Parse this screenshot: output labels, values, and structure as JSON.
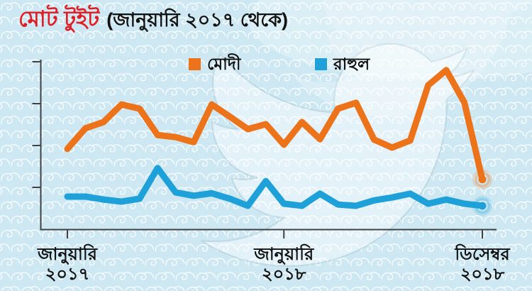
{
  "title": {
    "main": "মোট টুইট",
    "sub": "(জানুয়ারি ২০১৭ থেকে)"
  },
  "legend": {
    "items": [
      {
        "id": "modi",
        "label": "মোদী",
        "color": "#ec7319"
      },
      {
        "id": "rahul",
        "label": "রাহুল",
        "color": "#1ea0d9"
      }
    ]
  },
  "colors": {
    "background": "#cde8f2",
    "wave_pattern": "#ffffff",
    "axis": "#3f4245",
    "text": "#121212",
    "title_red": "#e01d24",
    "watermark": "#ffffff"
  },
  "chart_data": {
    "type": "line",
    "title": "মোট টুইট (জানুয়ারি ২০১৭ থেকে)",
    "grid": false,
    "legend_position": "top",
    "end_markers": true,
    "x_axis": {
      "unit": "month",
      "months_count": 24,
      "start_label": "জানুয়ারি ২০১৭",
      "end_label": "ডিসেম্বর ২০১৮",
      "tick_labels": [
        {
          "month_index": 0,
          "line1": "জানুয়ারি",
          "line2": "২০১৭"
        },
        {
          "month_index": 12,
          "line1": "জানুয়ারি",
          "line2": "২০১৮"
        },
        {
          "month_index": 23,
          "line1": "ডিসেম্বর",
          "line2": "২০১৮"
        }
      ]
    },
    "y_axis": {
      "tick_values": [
        1,
        2,
        3,
        4
      ],
      "labels_visible": false,
      "range": [
        0,
        4.3
      ],
      "note": "y-axis has unlabeled tick marks; series values estimated in tick units"
    },
    "series": [
      {
        "id": "modi",
        "name": "মোদী",
        "color": "#ec7319",
        "values": [
          1.92,
          2.41,
          2.56,
          2.98,
          2.88,
          2.25,
          2.2,
          2.08,
          2.98,
          2.69,
          2.39,
          2.51,
          2.02,
          2.56,
          2.15,
          2.88,
          3.02,
          2.14,
          1.95,
          2.12,
          3.44,
          3.8,
          3.03,
          1.19
        ]
      },
      {
        "id": "rahul",
        "name": "রাহুল",
        "color": "#1ea0d9",
        "values": [
          0.78,
          0.78,
          0.71,
          0.66,
          0.73,
          1.46,
          0.88,
          0.8,
          0.86,
          0.73,
          0.56,
          1.15,
          0.61,
          0.56,
          0.85,
          0.59,
          0.56,
          0.69,
          0.76,
          0.85,
          0.61,
          0.71,
          0.61,
          0.56
        ]
      }
    ]
  }
}
